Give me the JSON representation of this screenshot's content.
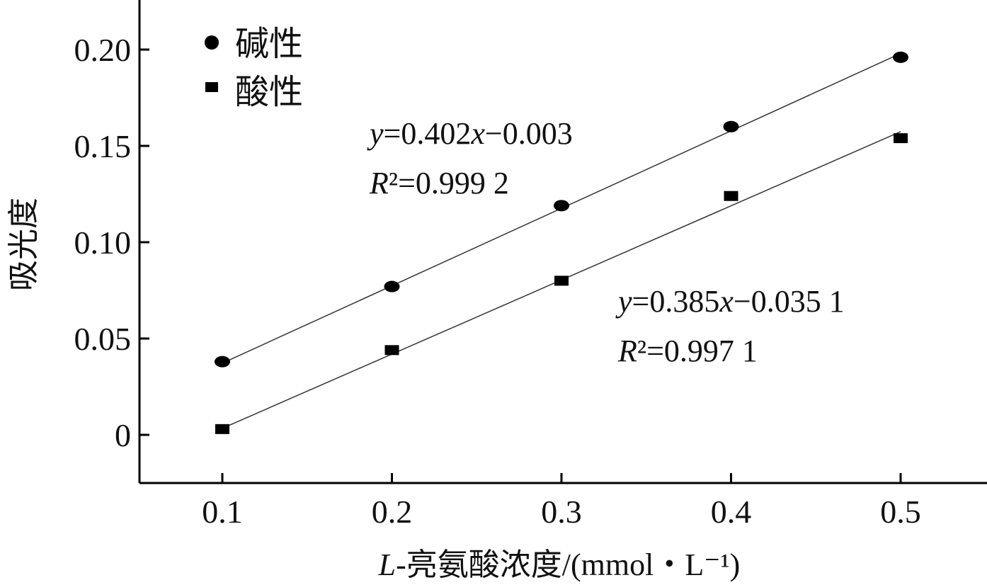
{
  "chart_data": {
    "type": "scatter",
    "xlabel": "L-亮氨酸浓度/(mmol・L⁻¹)",
    "ylabel": "吸光度",
    "xlim": [
      0.05,
      0.55
    ],
    "ylim": [
      -0.025,
      0.225
    ],
    "xticks": [
      0.1,
      0.2,
      0.3,
      0.4,
      0.5
    ],
    "xtick_labels": [
      "0.1",
      "0.2",
      "0.3",
      "0.4",
      "0.5"
    ],
    "yticks": [
      0,
      0.05,
      0.1,
      0.15,
      0.2
    ],
    "ytick_labels": [
      "0",
      "0.05",
      "0.10",
      "0.15",
      "0.20"
    ],
    "grid": false,
    "legend_position": "top-left",
    "series": [
      {
        "name": "碱性",
        "marker": "circle",
        "color": "#000000",
        "x": [
          0.1,
          0.2,
          0.3,
          0.4,
          0.5
        ],
        "y": [
          0.038,
          0.077,
          0.119,
          0.16,
          0.196
        ],
        "fit": {
          "slope": 0.402,
          "intercept": -0.003
        },
        "equation": "y=0.402x−0.003",
        "r2": "R²=0.999 2"
      },
      {
        "name": "酸性",
        "marker": "square",
        "color": "#000000",
        "x": [
          0.1,
          0.2,
          0.3,
          0.4,
          0.5
        ],
        "y": [
          0.003,
          0.044,
          0.08,
          0.124,
          0.154
        ],
        "fit": {
          "slope": 0.385,
          "intercept": -0.0351
        },
        "equation": "y=0.385x−0.035 1",
        "r2": "R²=0.997 1"
      }
    ]
  }
}
